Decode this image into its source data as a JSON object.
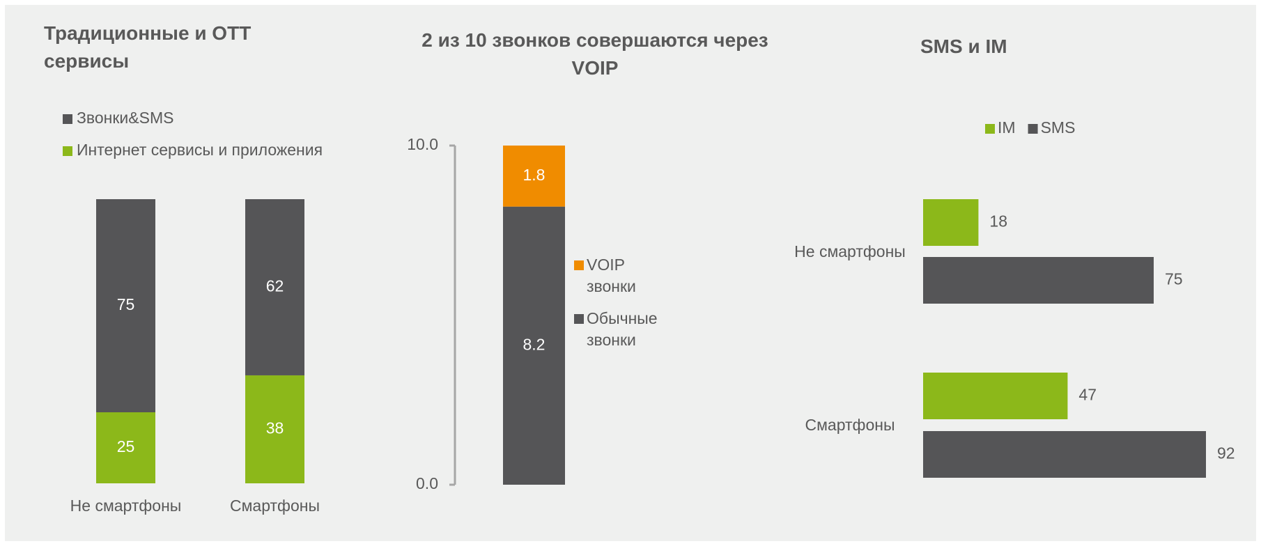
{
  "chart_data": [
    {
      "type": "stacked_bar",
      "title": "Традиционные и OTT сервисы",
      "categories": [
        "Не смартфоны",
        "Смартфоны"
      ],
      "series": [
        {
          "name": "Звонки&SMS",
          "color": "#555557",
          "values": [
            75,
            62
          ]
        },
        {
          "name": "Интернет сервисы и приложения",
          "color": "#8cb81a",
          "values": [
            25,
            38
          ]
        }
      ],
      "stack_order": "last-series-bottom",
      "legend": "top-left"
    },
    {
      "type": "stacked_bar",
      "title": "2 из 10 звонков  совершаются через VOIP",
      "categories": [
        null
      ],
      "series": [
        {
          "name": "VOIP звонки",
          "color": "#f08c00",
          "values": [
            1.8
          ]
        },
        {
          "name": "Обычные звонки",
          "color": "#555557",
          "values": [
            8.2
          ]
        }
      ],
      "stack_order": "last-series-bottom",
      "legend": "right",
      "ylim": [
        0,
        10
      ],
      "yticks": [
        {
          "value": 0,
          "label": "0.0"
        },
        {
          "value": 10,
          "label": "10.0"
        }
      ]
    },
    {
      "type": "hbar",
      "title": "SMS и IM",
      "categories": [
        "Не смартфоны",
        "Смартфоны"
      ],
      "series": [
        {
          "name": "IM",
          "color": "#8cb81a",
          "values": [
            18,
            47
          ]
        },
        {
          "name": "SMS",
          "color": "#555557",
          "values": [
            75,
            92
          ]
        }
      ],
      "legend": "top"
    }
  ]
}
